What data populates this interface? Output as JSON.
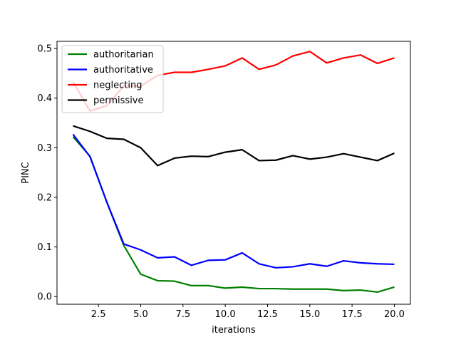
{
  "chart_data": {
    "type": "line",
    "title": "",
    "xlabel": "iterations",
    "ylabel": "PINC",
    "xlim": [
      0.05,
      20.95
    ],
    "ylim": [
      -0.0155,
      0.5145
    ],
    "x_ticks": [
      2.5,
      5.0,
      7.5,
      10.0,
      12.5,
      15.0,
      17.5,
      20.0
    ],
    "x_tick_labels": [
      "2.5",
      "5.0",
      "7.5",
      "10.0",
      "12.5",
      "15.0",
      "17.5",
      "20.0"
    ],
    "y_ticks": [
      0.0,
      0.1,
      0.2,
      0.3,
      0.4,
      0.5
    ],
    "y_tick_labels": [
      "0.0",
      "0.1",
      "0.2",
      "0.3",
      "0.4",
      "0.5"
    ],
    "grid": false,
    "legend_position": "top-left",
    "x": [
      1,
      2,
      3,
      4,
      5,
      6,
      7,
      8,
      9,
      10,
      11,
      12,
      13,
      14,
      15,
      16,
      17,
      18,
      19,
      20
    ],
    "series": [
      {
        "name": "authoritarian",
        "color": "#008000",
        "values": [
          0.322,
          0.283,
          0.19,
          0.103,
          0.045,
          0.032,
          0.031,
          0.022,
          0.022,
          0.017,
          0.019,
          0.016,
          0.016,
          0.015,
          0.015,
          0.015,
          0.012,
          0.013,
          0.009,
          0.019
        ]
      },
      {
        "name": "authoritative",
        "color": "#0000ff",
        "values": [
          0.327,
          0.282,
          0.19,
          0.106,
          0.094,
          0.078,
          0.08,
          0.063,
          0.073,
          0.074,
          0.088,
          0.066,
          0.058,
          0.06,
          0.066,
          0.061,
          0.072,
          0.068,
          0.066,
          0.065
        ]
      },
      {
        "name": "neglecting",
        "color": "#ff0000",
        "values": [
          0.433,
          0.374,
          0.385,
          0.425,
          0.424,
          0.446,
          0.452,
          0.452,
          0.458,
          0.465,
          0.481,
          0.458,
          0.467,
          0.485,
          0.494,
          0.471,
          0.481,
          0.487,
          0.47,
          0.481
        ]
      },
      {
        "name": "permissive",
        "color": "#000000",
        "values": [
          0.344,
          0.333,
          0.319,
          0.317,
          0.3,
          0.264,
          0.279,
          0.283,
          0.282,
          0.291,
          0.296,
          0.274,
          0.275,
          0.284,
          0.277,
          0.281,
          0.288,
          0.281,
          0.274,
          0.289
        ]
      }
    ]
  }
}
